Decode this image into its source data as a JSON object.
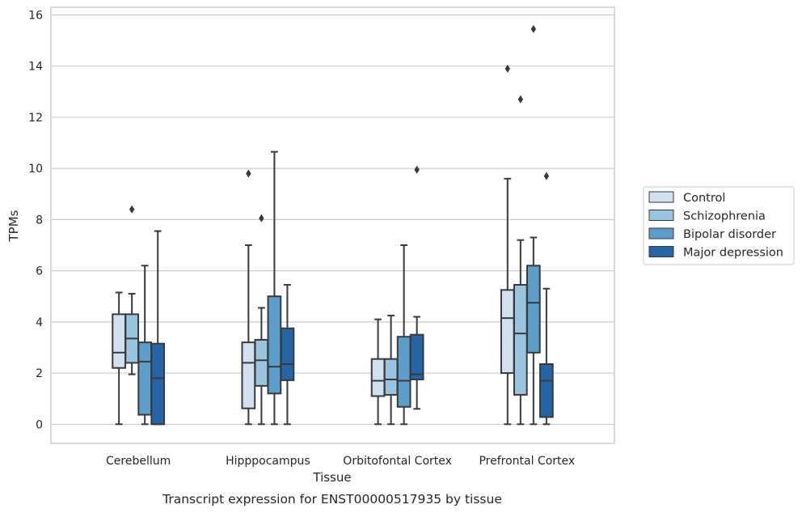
{
  "caption": "Transcript expression for ENST00000517935 by tissue",
  "chart_data": {
    "type": "boxplot",
    "xlabel": "Tissue",
    "ylabel": "TPMs",
    "ylim": [
      -0.75,
      16.3
    ],
    "yticks": [
      0,
      2,
      4,
      6,
      8,
      10,
      12,
      14,
      16
    ],
    "categories": [
      "Cerebellum",
      "Hipppocampus",
      "Orbitofontal Cortex",
      "Prefrontal Cortex"
    ],
    "grid": "horizontal",
    "legend_position": "right",
    "series": [
      {
        "name": "Control",
        "color": "#d2e1ef",
        "boxes": [
          {
            "whislo": 0.0,
            "q1": 2.2,
            "med": 2.8,
            "q3": 4.3,
            "whishi": 5.15,
            "fliers": []
          },
          {
            "whislo": 0.0,
            "q1": 0.62,
            "med": 2.4,
            "q3": 3.2,
            "whishi": 7.0,
            "fliers": [
              9.8
            ]
          },
          {
            "whislo": 0.0,
            "q1": 1.1,
            "med": 1.7,
            "q3": 2.55,
            "whishi": 4.1,
            "fliers": []
          },
          {
            "whislo": 0.0,
            "q1": 2.0,
            "med": 4.15,
            "q3": 5.25,
            "whishi": 9.6,
            "fliers": [
              13.9
            ]
          }
        ]
      },
      {
        "name": "Schizophrenia",
        "color": "#9ac5df",
        "boxes": [
          {
            "whislo": 1.95,
            "q1": 2.4,
            "med": 3.35,
            "q3": 4.3,
            "whishi": 5.1,
            "fliers": [
              8.4
            ]
          },
          {
            "whislo": 0.0,
            "q1": 1.5,
            "med": 2.5,
            "q3": 3.3,
            "whishi": 4.55,
            "fliers": [
              8.05
            ]
          },
          {
            "whislo": 0.0,
            "q1": 1.15,
            "med": 1.75,
            "q3": 2.55,
            "whishi": 4.25,
            "fliers": []
          },
          {
            "whislo": 0.0,
            "q1": 1.15,
            "med": 3.55,
            "q3": 5.45,
            "whishi": 7.2,
            "fliers": [
              12.7
            ]
          }
        ]
      },
      {
        "name": "Bipolar disorder",
        "color": "#5a9ec9",
        "boxes": [
          {
            "whislo": 0.0,
            "q1": 0.37,
            "med": 2.45,
            "q3": 3.2,
            "whishi": 6.2,
            "fliers": []
          },
          {
            "whislo": 0.0,
            "q1": 1.2,
            "med": 2.25,
            "q3": 5.0,
            "whishi": 10.65,
            "fliers": []
          },
          {
            "whislo": 0.0,
            "q1": 0.68,
            "med": 1.7,
            "q3": 3.42,
            "whishi": 7.0,
            "fliers": []
          },
          {
            "whislo": 0.0,
            "q1": 2.8,
            "med": 4.75,
            "q3": 6.2,
            "whishi": 7.3,
            "fliers": [
              15.45
            ]
          }
        ]
      },
      {
        "name": "Major depression",
        "color": "#2465a8",
        "boxes": [
          {
            "whislo": 0.0,
            "q1": 0.0,
            "med": 1.8,
            "q3": 3.15,
            "whishi": 7.55,
            "fliers": []
          },
          {
            "whislo": 0.0,
            "q1": 1.72,
            "med": 2.35,
            "q3": 3.75,
            "whishi": 5.45,
            "fliers": []
          },
          {
            "whislo": 0.6,
            "q1": 1.75,
            "med": 1.95,
            "q3": 3.5,
            "whishi": 4.2,
            "fliers": [
              9.95
            ]
          },
          {
            "whislo": 0.0,
            "q1": 0.28,
            "med": 1.7,
            "q3": 2.35,
            "whishi": 5.3,
            "fliers": [
              9.7
            ]
          }
        ]
      }
    ]
  }
}
